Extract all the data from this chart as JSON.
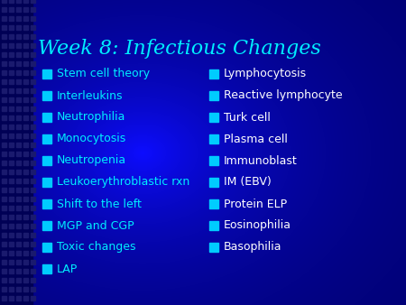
{
  "title": "Week 8: Infectious Changes",
  "title_color": "#00EEFF",
  "title_fontsize": 16,
  "left_items": [
    "Stem cell theory",
    "Interleukins",
    "Neutrophilia",
    "Monocytosis",
    "Neutropenia",
    "Leukoerythroblastic rxn",
    "Shift to the left",
    "MGP and CGP",
    "Toxic changes",
    "LAP"
  ],
  "right_items": [
    "Lymphocytosis",
    "Reactive lymphocyte",
    "Turk cell",
    "Plasma cell",
    "Immunoblast",
    "IM (EBV)",
    "Protein ELP",
    "Eosinophilia",
    "Basophilia"
  ],
  "left_item_color": "#00EEFF",
  "right_item_color": "#FFFFFF",
  "bullet_color_left": "#00CCFF",
  "bullet_color_right": "#00CCFF",
  "item_fontsize": 9,
  "bg_base_color": "#0000AA"
}
